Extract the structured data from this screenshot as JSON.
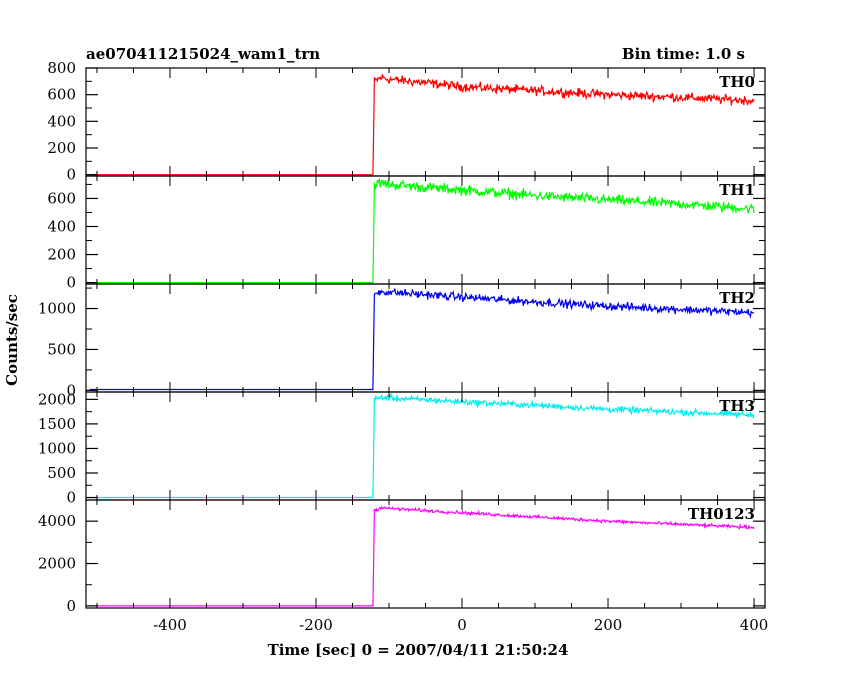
{
  "title": "ae070411215024_wam1_trn",
  "bin_label": "Bin time: 1.0 s",
  "ylabel": "Counts/sec",
  "xlabel": "Time [sec] 0 = 2007/04/11 21:50:24",
  "chart_data": {
    "type": "line",
    "xlim": [
      -515,
      415
    ],
    "x_ticks": [
      -400,
      -200,
      0,
      200,
      400
    ],
    "grid": false,
    "onset_time": -122,
    "end_time": 400,
    "panels": [
      {
        "name": "TH0",
        "color": "#ff0000",
        "ylim": [
          -10,
          800
        ],
        "yticks": [
          0,
          200,
          400,
          600,
          800
        ],
        "baseline": 0,
        "peak": 715,
        "end": 555,
        "noise": 28,
        "points": [
          [
            -510,
            0
          ],
          [
            -123,
            0
          ],
          [
            -122,
            0
          ],
          [
            -120,
            700
          ],
          [
            -110,
            730
          ],
          [
            -100,
            715
          ],
          [
            -50,
            690
          ],
          [
            0,
            660
          ],
          [
            100,
            630
          ],
          [
            200,
            600
          ],
          [
            300,
            580
          ],
          [
            400,
            555
          ]
        ]
      },
      {
        "name": "TH1",
        "color": "#00ff00",
        "ylim": [
          -10,
          760
        ],
        "yticks": [
          0,
          200,
          400,
          600
        ],
        "baseline": 0,
        "peak": 700,
        "end": 525,
        "noise": 30,
        "points": [
          [
            -510,
            0
          ],
          [
            -123,
            0
          ],
          [
            -122,
            0
          ],
          [
            -120,
            700
          ],
          [
            -110,
            710
          ],
          [
            -100,
            700
          ],
          [
            0,
            660
          ],
          [
            100,
            620
          ],
          [
            200,
            590
          ],
          [
            300,
            560
          ],
          [
            400,
            525
          ]
        ]
      },
      {
        "name": "TH2",
        "color": "#0000ee",
        "ylim": [
          -20,
          1300
        ],
        "yticks": [
          0,
          500,
          1000
        ],
        "baseline": 10,
        "peak": 1210,
        "end": 950,
        "noise": 40,
        "points": [
          [
            -510,
            10
          ],
          [
            -123,
            10
          ],
          [
            -122,
            10
          ],
          [
            -120,
            1180
          ],
          [
            -110,
            1210
          ],
          [
            -100,
            1200
          ],
          [
            0,
            1140
          ],
          [
            100,
            1080
          ],
          [
            200,
            1030
          ],
          [
            300,
            990
          ],
          [
            400,
            950
          ]
        ]
      },
      {
        "name": "TH3",
        "color": "#00eeee",
        "ylim": [
          -50,
          2150
        ],
        "yticks": [
          0,
          500,
          1000,
          1500,
          2000
        ],
        "baseline": 0,
        "peak": 2040,
        "end": 1680,
        "noise": 50,
        "points": [
          [
            -510,
            0
          ],
          [
            -123,
            0
          ],
          [
            -122,
            0
          ],
          [
            -120,
            2000
          ],
          [
            -110,
            2040
          ],
          [
            -100,
            2030
          ],
          [
            0,
            1950
          ],
          [
            100,
            1880
          ],
          [
            200,
            1800
          ],
          [
            300,
            1740
          ],
          [
            400,
            1680
          ]
        ]
      },
      {
        "name": "TH0123",
        "color": "#ff00ff",
        "ylim": [
          -100,
          5000
        ],
        "yticks": [
          0,
          2000,
          4000
        ],
        "baseline": 0,
        "peak": 4600,
        "end": 3700,
        "noise": 60,
        "points": [
          [
            -510,
            0
          ],
          [
            -123,
            0
          ],
          [
            -122,
            0
          ],
          [
            -120,
            4500
          ],
          [
            -110,
            4650
          ],
          [
            -100,
            4600
          ],
          [
            0,
            4400
          ],
          [
            100,
            4200
          ],
          [
            200,
            4000
          ],
          [
            300,
            3850
          ],
          [
            400,
            3700
          ]
        ]
      }
    ]
  }
}
